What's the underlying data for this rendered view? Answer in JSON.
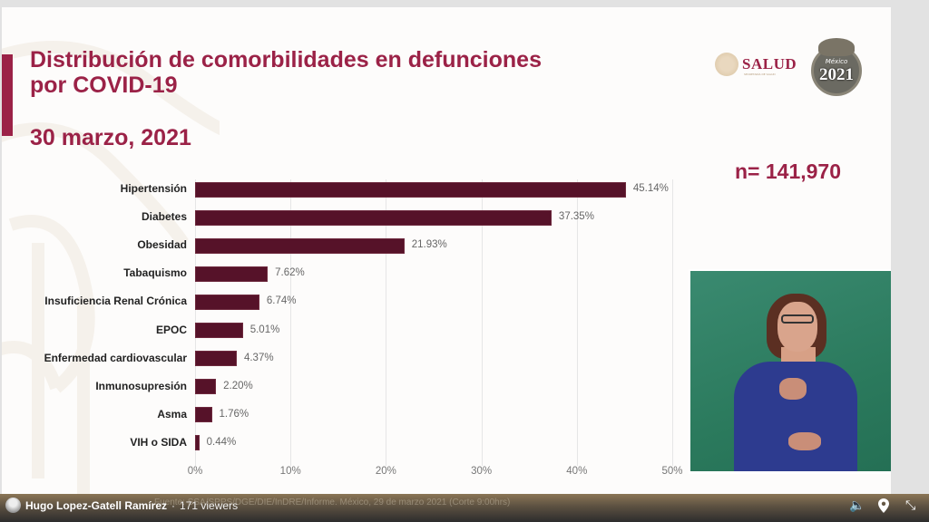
{
  "slide": {
    "title_line1": "Distribución de comorbilidades en defunciones",
    "title_line2": "por COVID-19",
    "date": "30 marzo, 2021",
    "n_label": "n= 141,970",
    "logos": {
      "salud": "SALUD",
      "salud_sub": "SECRETARÍA DE SALUD",
      "emblem_year": "2021",
      "emblem_text": "México"
    },
    "footer_partial": "Fuente: SSA/SPPS/DGE/DIE/InDRE/Informe. México, 29 de marzo 2021 (Corte 9:00hrs)"
  },
  "chart_data": {
    "type": "bar",
    "orientation": "horizontal",
    "title": "Distribución de comorbilidades en defunciones por COVID-19",
    "subtitle": "30 marzo, 2021",
    "annotation": "n= 141,970",
    "categories": [
      "Hipertensión",
      "Diabetes",
      "Obesidad",
      "Tabaquismo",
      "Insuficiencia Renal Crónica",
      "EPOC",
      "Enfermedad cardiovascular",
      "Inmunosupresión",
      "Asma",
      "VIH o SIDA"
    ],
    "values": [
      45.14,
      37.35,
      21.93,
      7.62,
      6.74,
      5.01,
      4.37,
      2.2,
      1.76,
      0.44
    ],
    "value_labels": [
      "45.14%",
      "37.35%",
      "21.93%",
      "7.62%",
      "6.74%",
      "5.01%",
      "4.37%",
      "2.20%",
      "1.76%",
      "0.44%"
    ],
    "xlabel": "",
    "ylabel": "",
    "xlim": [
      0,
      50
    ],
    "xticks": [
      "0%",
      "10%",
      "20%",
      "30%",
      "40%",
      "50%"
    ],
    "grid": true,
    "bar_color": "#561229"
  },
  "stream": {
    "streamer_name": "Hugo Lopez-Gatell Ramírez",
    "separator": "·",
    "viewers": "171 viewers",
    "controls": {
      "volume_icon": "🔈",
      "location_icon": "⬤",
      "minimize_icon": "⤡"
    }
  },
  "colors": {
    "accent": "#9b2247",
    "bar": "#561229",
    "interpreter_bg": "#2b7a5d"
  }
}
